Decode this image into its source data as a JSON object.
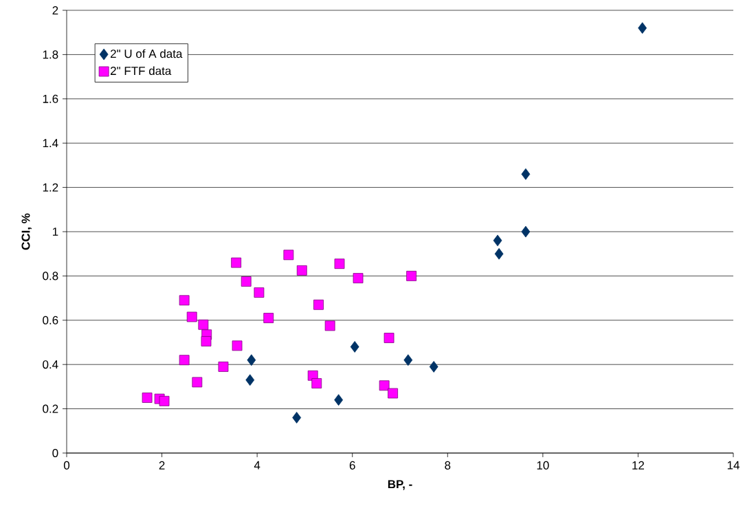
{
  "chart_data": {
    "type": "scatter",
    "xlabel": "BP, -",
    "ylabel": "CCI, %",
    "xlim": [
      0,
      14
    ],
    "xticks": [
      0,
      2,
      4,
      6,
      8,
      10,
      12,
      14
    ],
    "ylim": [
      0,
      2
    ],
    "yticks": [
      0,
      0.2,
      0.4,
      0.6,
      0.8,
      1,
      1.2,
      1.4,
      1.6,
      1.8,
      2
    ],
    "grid": "y",
    "legend": "top left",
    "series": [
      {
        "name": "2\" U of A data",
        "color": "#003366",
        "marker": "diamond",
        "x": [
          12.09,
          9.64,
          9.64,
          9.05,
          9.08,
          6.05,
          7.17,
          7.71,
          3.88,
          3.85,
          4.83,
          5.71
        ],
        "values": [
          1.92,
          1.26,
          1.0,
          0.96,
          0.9,
          0.48,
          0.42,
          0.39,
          0.42,
          0.33,
          0.16,
          0.24
        ]
      },
      {
        "name": "2\" FTF data",
        "color": "#ff00ff",
        "marker": "square",
        "x": [
          1.69,
          1.95,
          2.05,
          2.47,
          2.63,
          2.47,
          2.74,
          2.87,
          2.94,
          2.93,
          3.29,
          3.56,
          3.58,
          3.77,
          4.04,
          4.24,
          4.66,
          4.94,
          5.17,
          5.25,
          5.29,
          5.53,
          5.73,
          6.12,
          6.67,
          6.85,
          6.77,
          7.24
        ],
        "values": [
          0.25,
          0.245,
          0.235,
          0.69,
          0.615,
          0.42,
          0.32,
          0.58,
          0.535,
          0.505,
          0.39,
          0.86,
          0.485,
          0.775,
          0.725,
          0.61,
          0.895,
          0.825,
          0.35,
          0.315,
          0.67,
          0.575,
          0.855,
          0.79,
          0.305,
          0.27,
          0.52,
          0.8
        ]
      }
    ]
  }
}
